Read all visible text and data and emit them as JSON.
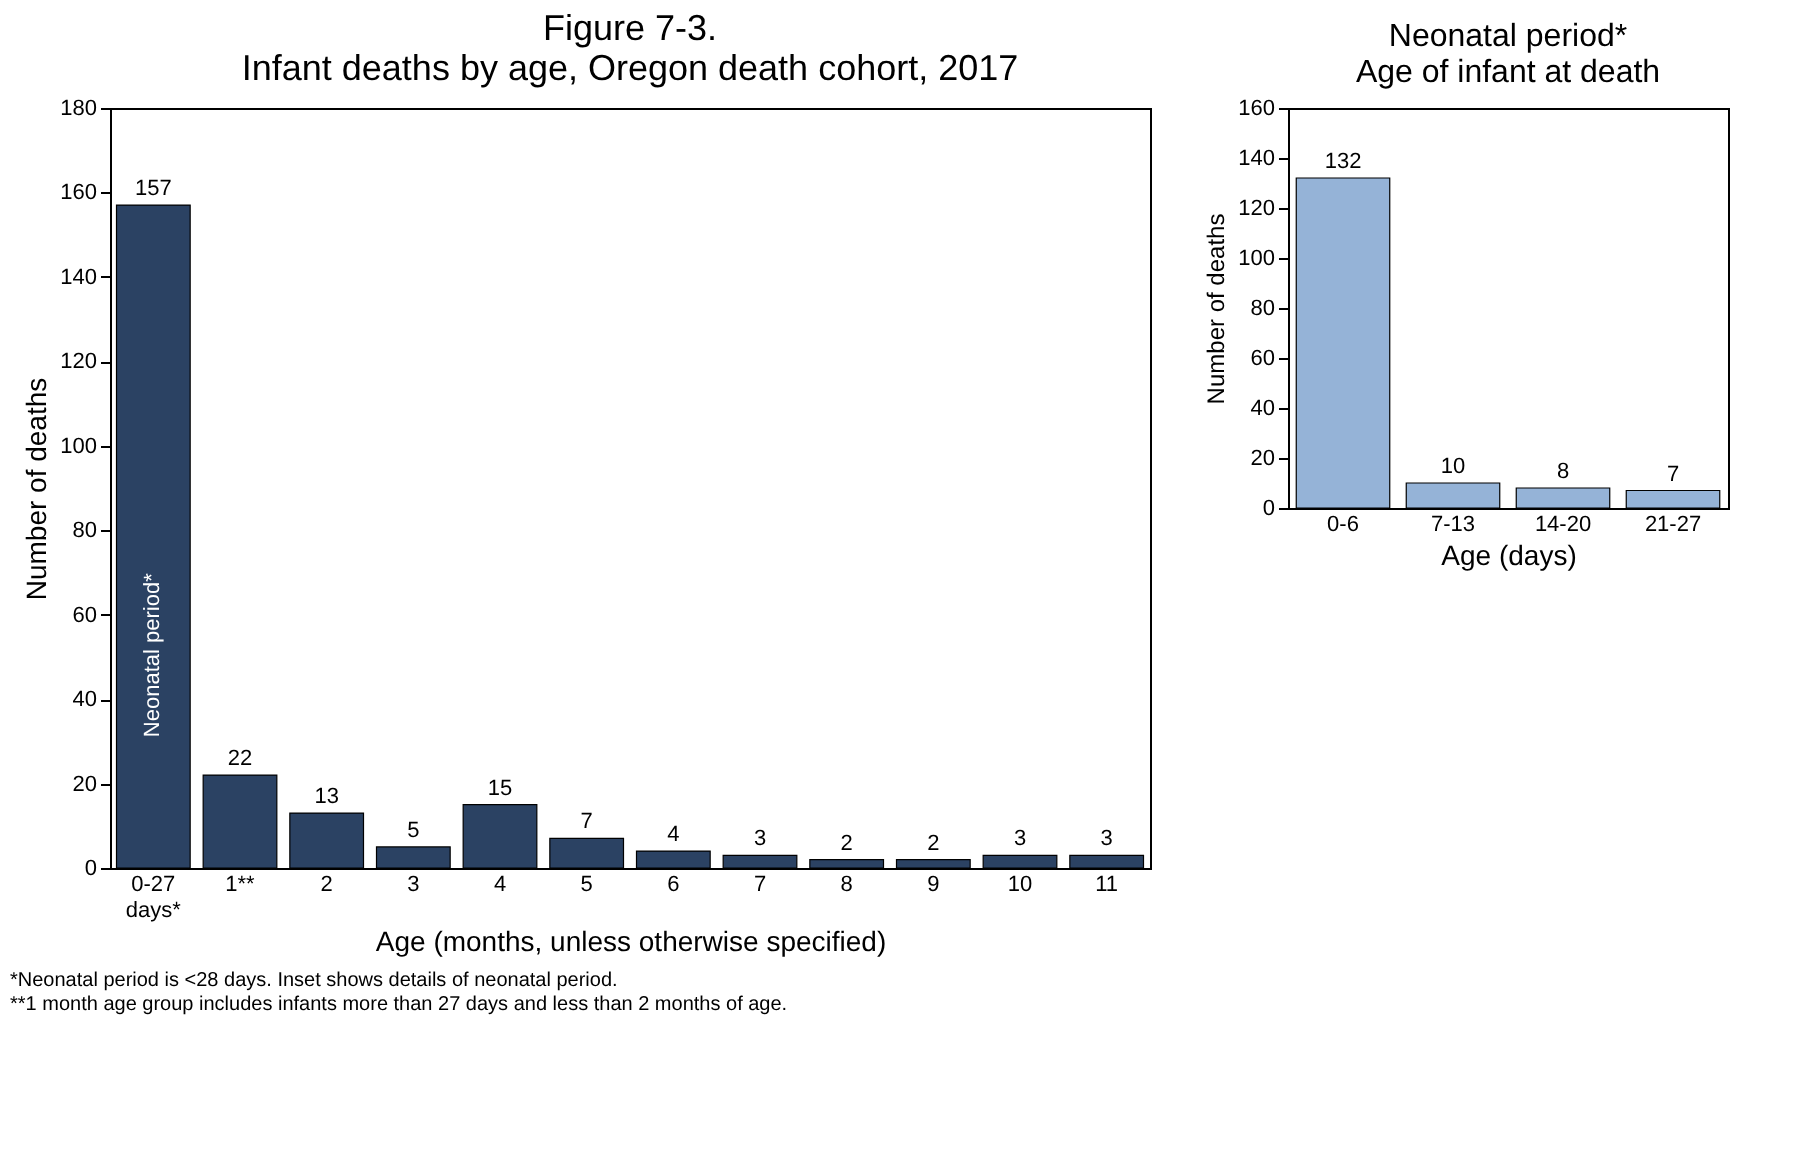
{
  "chart_data": [
    {
      "type": "bar",
      "title": "Figure 7-3.\nInfant deaths by age, Oregon death cohort, 2017",
      "xlabel": "Age (months, unless otherwise specified)",
      "ylabel": "Number of deaths",
      "categories": [
        "0-27 days*",
        "1**",
        "2",
        "3",
        "4",
        "5",
        "6",
        "7",
        "8",
        "9",
        "10",
        "11"
      ],
      "values": [
        157,
        22,
        13,
        5,
        15,
        7,
        4,
        3,
        2,
        2,
        3,
        3
      ],
      "color": "#2b4263",
      "ylim": [
        0,
        180
      ],
      "yticks": [
        0,
        20,
        40,
        60,
        80,
        100,
        120,
        140,
        160,
        180
      ],
      "grid": false,
      "data_labels": true,
      "annotations": [
        "Neonatal period*",
        "*Neonatal period  is <28 days. Inset shows details of neonatal period.",
        "**1 month age group includes infants more than 27 days and less than 2 months of age."
      ]
    },
    {
      "type": "bar",
      "title": "Neonatal period*\nAge of infant at death",
      "xlabel": "Age (days)",
      "ylabel": "Number of deaths",
      "categories": [
        "0-6",
        "7-13",
        "14-20",
        "21-27"
      ],
      "values": [
        132,
        10,
        8,
        7
      ],
      "color": "#95b3d7",
      "ylim": [
        0,
        160
      ],
      "yticks": [
        0,
        20,
        40,
        60,
        80,
        100,
        120,
        140,
        160
      ],
      "grid": false,
      "data_labels": true
    }
  ]
}
